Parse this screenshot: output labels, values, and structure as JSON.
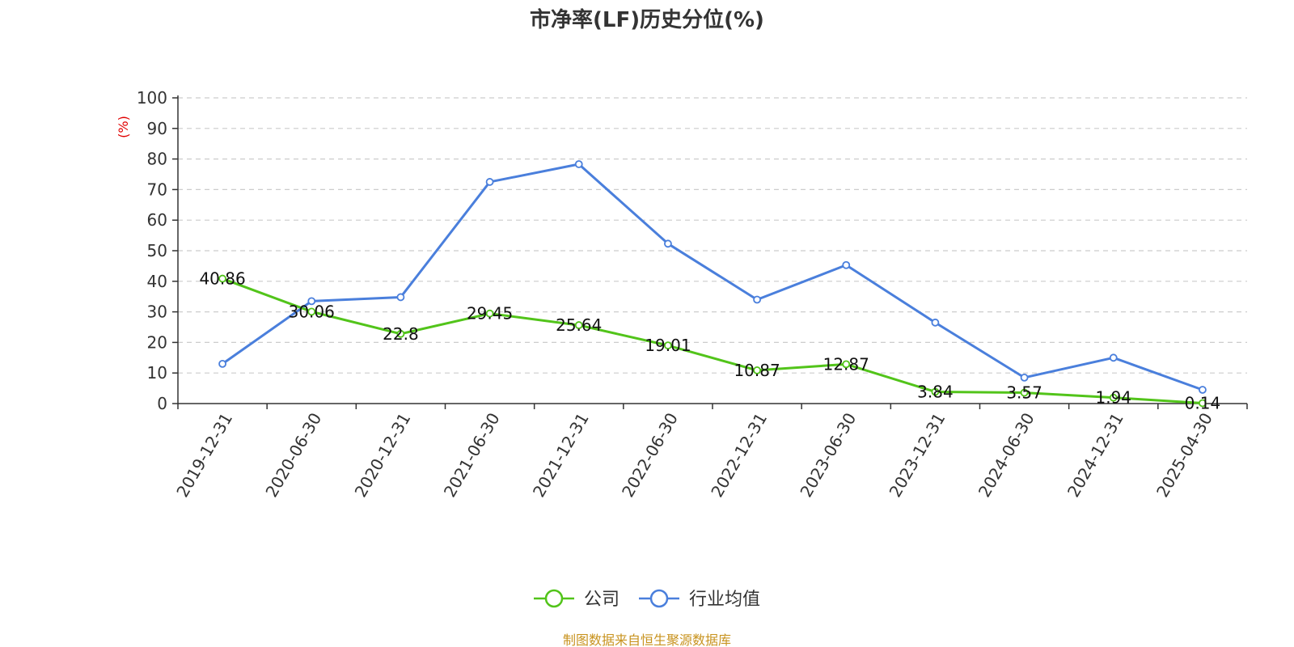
{
  "chart_data": {
    "type": "line",
    "title": "市净率(LF)历史分位(%)",
    "xlabel": "",
    "ylabel": "(%)",
    "ylabel_color": "#e00000",
    "ylim": [
      0,
      100
    ],
    "yticks": [
      0,
      10,
      20,
      30,
      40,
      50,
      60,
      70,
      80,
      90,
      100
    ],
    "grid": true,
    "legend_position": "bottom-center",
    "categories": [
      "2019-12-31",
      "2020-06-30",
      "2020-12-31",
      "2021-06-30",
      "2021-12-31",
      "2022-06-30",
      "2022-12-31",
      "2023-06-30",
      "2023-12-31",
      "2024-06-30",
      "2024-12-31",
      "2025-04-30"
    ],
    "series": [
      {
        "name": "公司",
        "color": "#52c41a",
        "values": [
          40.86,
          30.06,
          22.8,
          29.45,
          25.64,
          19.01,
          10.87,
          12.87,
          3.84,
          3.57,
          1.94,
          0.14
        ],
        "data_labels": [
          "40.86",
          "30.06",
          "22.8",
          "29.45",
          "25.64",
          "19.01",
          "10.87",
          "12.87",
          "3.84",
          "3.57",
          "1.94",
          "0.14"
        ]
      },
      {
        "name": "行业均值",
        "color": "#4a7fdc",
        "values": [
          13.0,
          33.5,
          34.8,
          72.5,
          78.3,
          52.3,
          34.0,
          45.3,
          26.5,
          8.5,
          15.0,
          4.5
        ]
      }
    ]
  },
  "source_text": "制图数据来自恒生聚源数据库",
  "source_color": "#c8931f"
}
